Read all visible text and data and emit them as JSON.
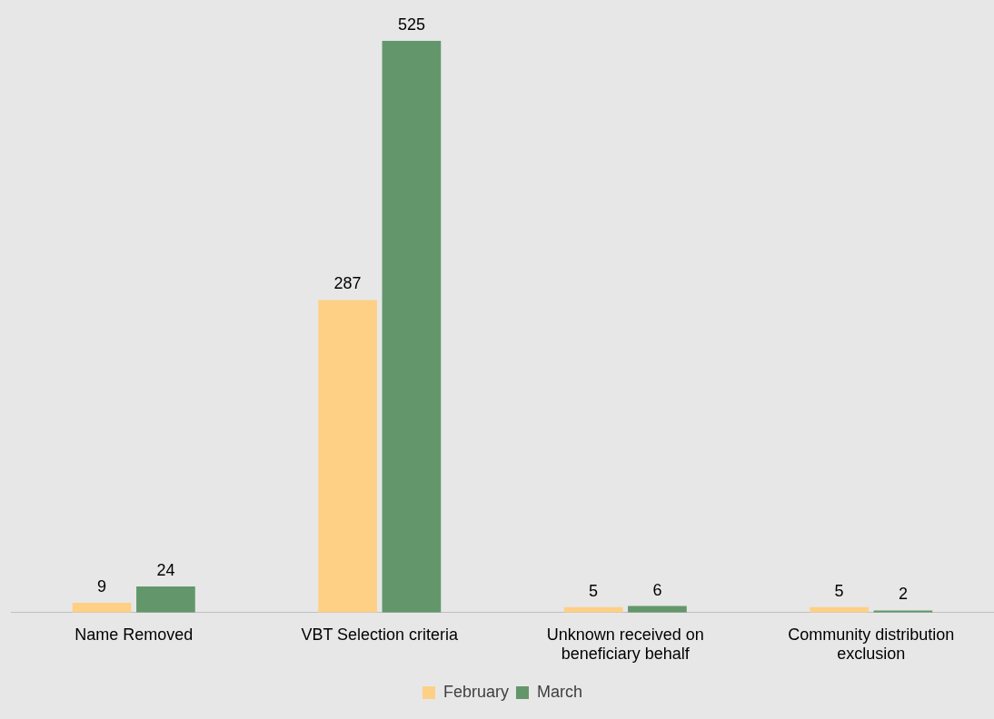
{
  "chart_data": {
    "type": "bar",
    "categories": [
      "Name Removed",
      "VBT Selection criteria",
      "Unknown received on beneficiary behalf",
      "Community distribution exclusion"
    ],
    "series": [
      {
        "name": "February",
        "color": "#fdd086",
        "values": [
          9,
          287,
          5,
          5
        ]
      },
      {
        "name": "March",
        "color": "#63976b",
        "values": [
          24,
          525,
          6,
          2
        ]
      }
    ],
    "data_labels": true,
    "legend": "bottom",
    "grid": false
  }
}
